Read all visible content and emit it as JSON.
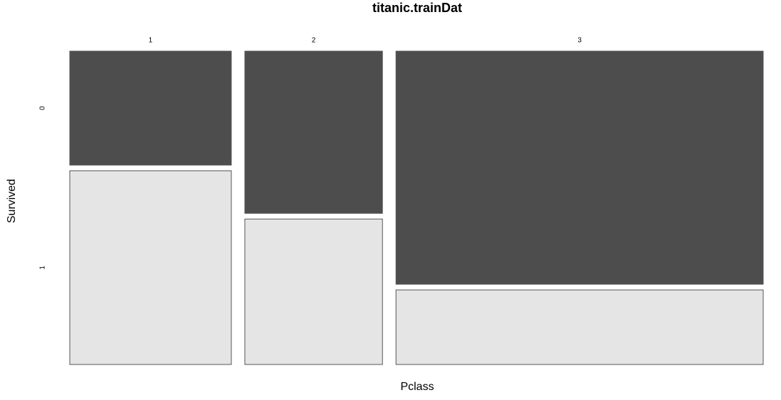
{
  "chart_data": {
    "type": "mosaic",
    "title": "titanic.trainDat",
    "x_label": "Pclass",
    "y_label": "Survived",
    "categories": [
      "1",
      "2",
      "3"
    ],
    "series": [
      {
        "name": "0",
        "color": "#4d4d4d",
        "values": [
          80,
          97,
          372
        ]
      },
      {
        "name": "1",
        "color": "#e5e5e5",
        "values": [
          136,
          87,
          119
        ]
      }
    ]
  }
}
